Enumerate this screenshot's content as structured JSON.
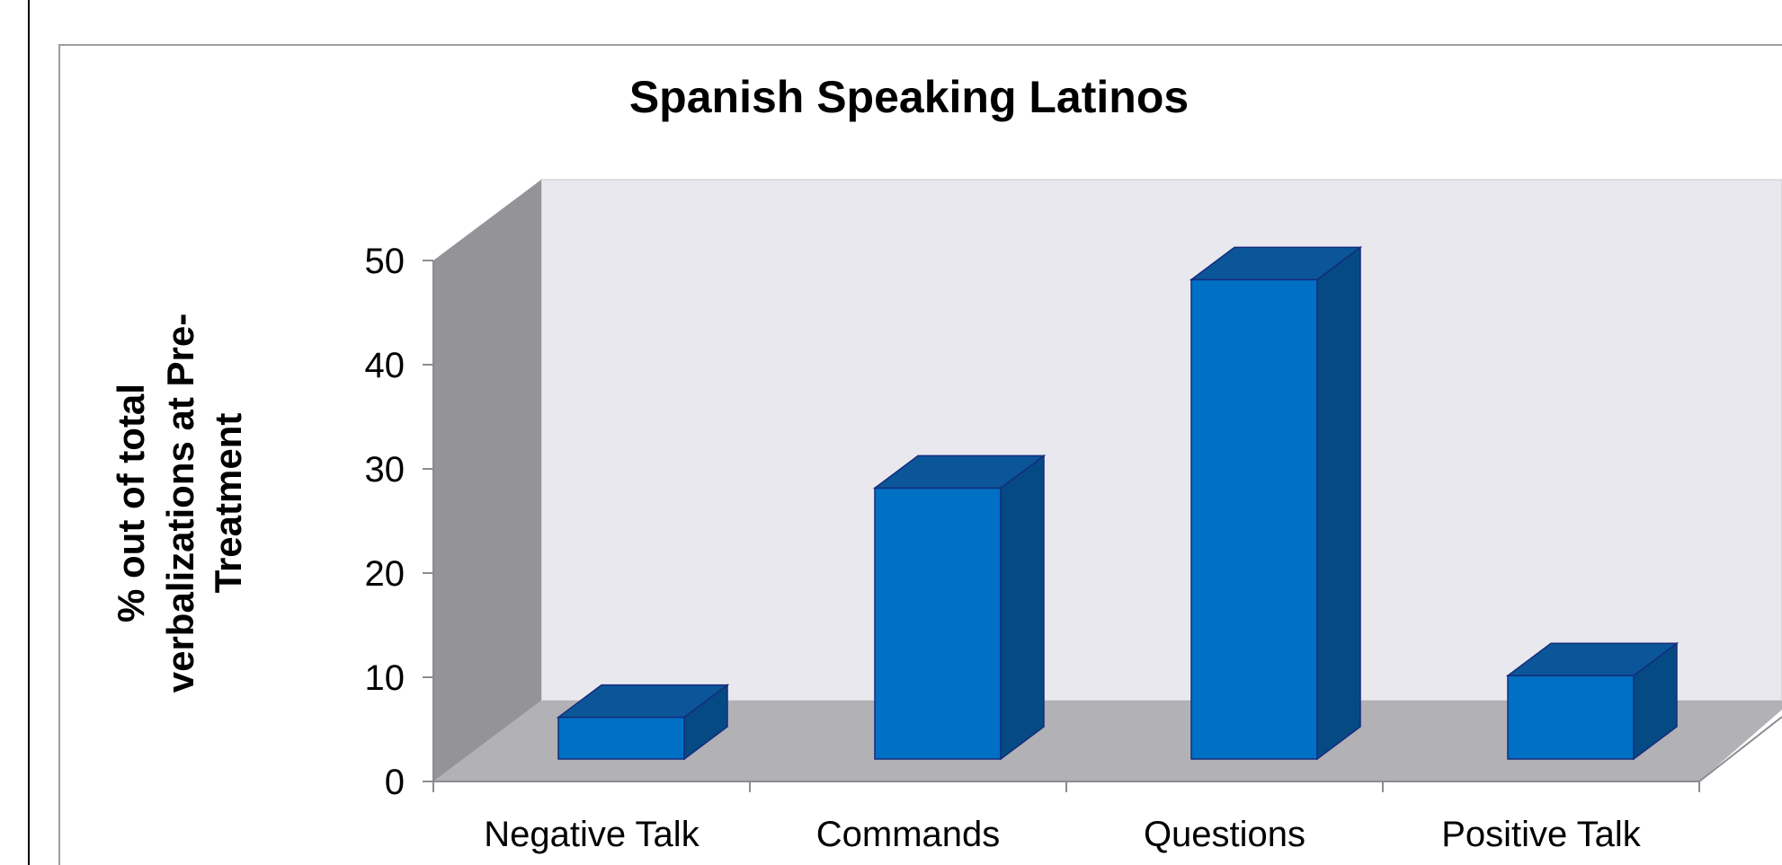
{
  "chart_data": {
    "type": "bar",
    "title": "Spanish Speaking Latinos",
    "ylabel": "% out of total verbalizations at Pre-Treatment",
    "ylabel_lines": [
      "% out of total",
      "verbalizations at Pre-",
      "Treatment"
    ],
    "xlabel": "",
    "categories": [
      "Negative Talk",
      "Commands",
      "Questions",
      "Positive Talk"
    ],
    "values": [
      4,
      26,
      46,
      8
    ],
    "ylim": [
      0,
      50
    ],
    "yticks": [
      "0",
      "10",
      "20",
      "30",
      "40",
      "50"
    ],
    "grid": false,
    "legend": "none",
    "style": "3d-column",
    "colors": {
      "bar_front": "#0070C4",
      "bar_top": "#0A5699",
      "bar_side": "#064A84",
      "bar_edge": "#142C7C",
      "back_wall": "#E8E8EE",
      "side_wall": "#939398",
      "floor": "#B1B1B6",
      "frame": "#9E9E9E"
    }
  }
}
